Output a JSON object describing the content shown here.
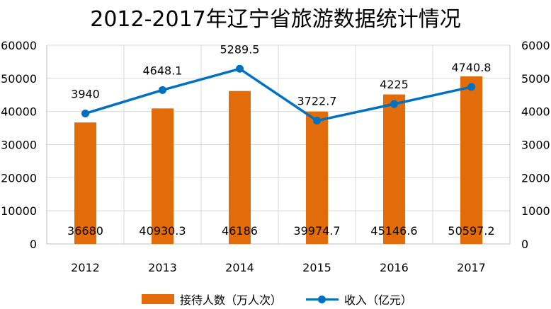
{
  "chart_data": {
    "type": "bar",
    "title": "2012-2017年辽宁省旅游数据统计情况",
    "categories": [
      "2012",
      "2013",
      "2014",
      "2015",
      "2016",
      "2017"
    ],
    "series": [
      {
        "name": "接待人数（万人次）",
        "type": "bar",
        "axis": "left",
        "values": [
          36680,
          40930.3,
          46186,
          39974.7,
          45146.6,
          50597.2
        ],
        "value_labels": [
          "36680",
          "40930.3",
          "46186",
          "39974.7",
          "45146.6",
          "50597.2"
        ]
      },
      {
        "name": "收入（亿元）",
        "type": "line",
        "axis": "right",
        "values": [
          3940,
          4648.1,
          5289.5,
          3722.7,
          4225,
          4740.8
        ],
        "value_labels": [
          "3940",
          "4648.1",
          "5289.5",
          "3722.7",
          "4225",
          "4740.8"
        ]
      }
    ],
    "y_left": {
      "range": [
        0,
        60000
      ],
      "ticks": [
        "0",
        "10000",
        "20000",
        "30000",
        "40000",
        "50000",
        "60000"
      ]
    },
    "y_right": {
      "range": [
        0,
        6000
      ],
      "ticks": [
        "0",
        "1000",
        "2000",
        "3000",
        "4000",
        "5000",
        "6000"
      ]
    },
    "grid": true,
    "legend_position": "bottom",
    "colors": {
      "bar": "#E36C0A",
      "line": "#0070C0",
      "grid": "#d9d9d9",
      "axis_text": "#000000"
    }
  }
}
